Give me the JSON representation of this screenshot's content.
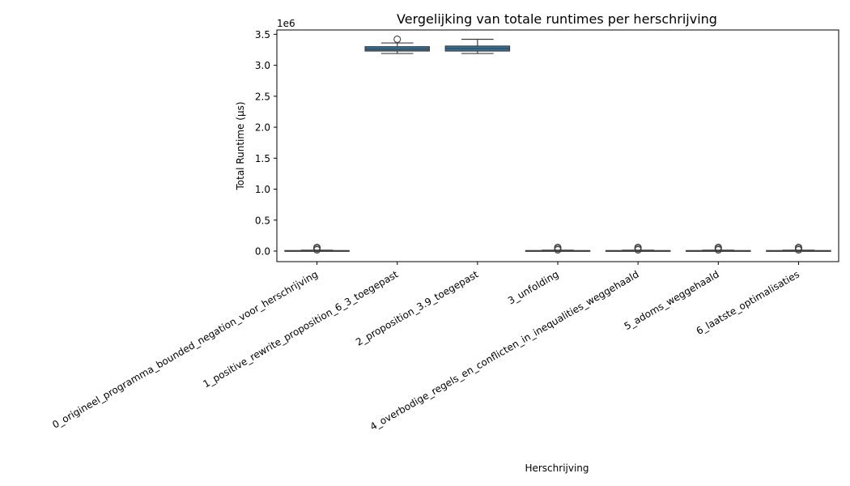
{
  "chart_data": {
    "type": "box",
    "title": "Vergelijking van totale runtimes per herschrijving",
    "xlabel": "Herschrijving",
    "ylabel": "Total Runtime (µs)",
    "y_offset_text": "1e6",
    "ylim": [
      -170000,
      3570000
    ],
    "yticks": [
      0,
      500000,
      1000000,
      1500000,
      2000000,
      2500000,
      3000000,
      3500000
    ],
    "ytick_labels": [
      "0.0",
      "0.5",
      "1.0",
      "1.5",
      "2.0",
      "2.5",
      "3.0",
      "3.5"
    ],
    "grid": false,
    "box_color": "#3274a1",
    "categories": [
      "0_origineel_programma_bounded_negation_voor_herschrijving",
      "1_positive_rewrite_proposition_6_3_toegepast",
      "2_proposition_3.9_toegepast",
      "3_unfolding",
      "4_overbodige_regels_en_conflicten_in_inequalities_weggehaald",
      "5_adoms_weggehaald",
      "6_laatste_optimalisaties"
    ],
    "boxes": [
      {
        "whislo": 0,
        "q1": 3000,
        "med": 6000,
        "q3": 9000,
        "whishi": 15000,
        "fliers": [
          20000,
          40000,
          60000
        ]
      },
      {
        "whislo": 3190000,
        "q1": 3230000,
        "med": 3260000,
        "q3": 3300000,
        "whishi": 3360000,
        "fliers": [
          3420000
        ]
      },
      {
        "whislo": 3190000,
        "q1": 3230000,
        "med": 3270000,
        "q3": 3310000,
        "whishi": 3420000,
        "fliers": []
      },
      {
        "whislo": 0,
        "q1": 3000,
        "med": 6000,
        "q3": 9000,
        "whishi": 15000,
        "fliers": [
          20000,
          40000,
          60000
        ]
      },
      {
        "whislo": 0,
        "q1": 3000,
        "med": 6000,
        "q3": 9000,
        "whishi": 15000,
        "fliers": [
          20000,
          40000,
          60000
        ]
      },
      {
        "whislo": 0,
        "q1": 3000,
        "med": 6000,
        "q3": 9000,
        "whishi": 15000,
        "fliers": [
          20000,
          40000,
          60000
        ]
      },
      {
        "whislo": 0,
        "q1": 3000,
        "med": 6000,
        "q3": 9000,
        "whishi": 15000,
        "fliers": [
          20000,
          40000,
          60000
        ]
      }
    ]
  }
}
